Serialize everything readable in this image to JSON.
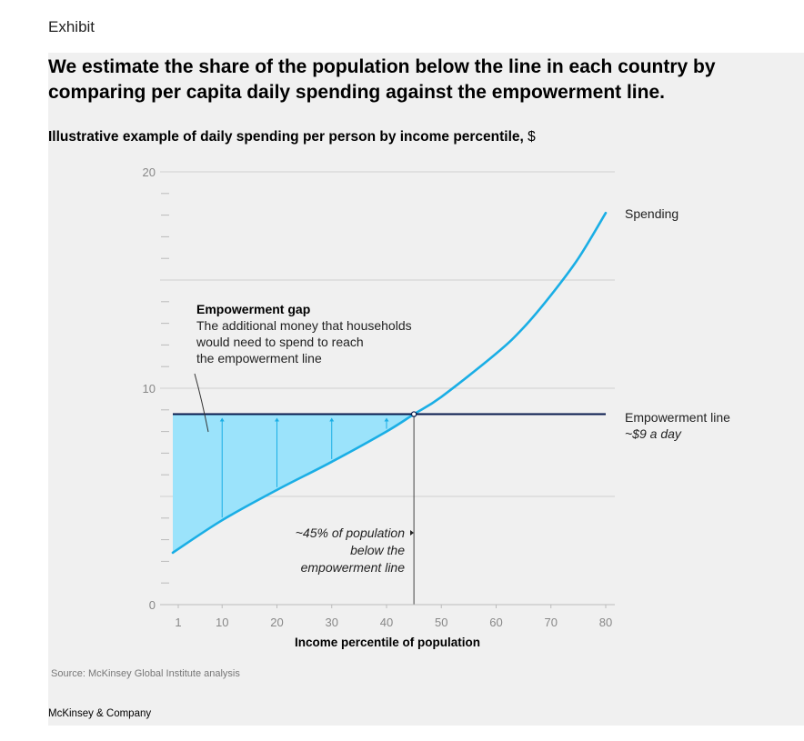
{
  "exhibit_label": "Exhibit",
  "headline": "We estimate the share of the population below the line in each country by comparing per capita daily spending against the empowerment line.",
  "subtitle": {
    "bold": "Illustrative example of daily spending per person by income percentile,",
    "unit": " $"
  },
  "source": "Source: McKinsey Global Institute analysis",
  "brand": "McKinsey & Company",
  "colors": {
    "spending": "#1aaee5",
    "gap_fill": "#9be3fb",
    "empowerment_line": "#06184b",
    "grid": "#cfcfcf"
  },
  "chart_data": {
    "type": "line",
    "title": "Illustrative example of daily spending per person by income percentile, $",
    "xlabel": "Income percentile of population",
    "ylabel": "",
    "xlim": [
      1,
      80
    ],
    "ylim": [
      0,
      20
    ],
    "x_ticks": [
      1,
      10,
      20,
      30,
      40,
      50,
      60,
      70,
      80
    ],
    "y_ticks": [
      0,
      10,
      20
    ],
    "gridlines_y": [
      0,
      5,
      10,
      15,
      20
    ],
    "minor_y_step": 1,
    "series": [
      {
        "name": "Spending",
        "x": [
          1,
          10,
          20,
          30,
          40,
          45,
          50,
          60,
          65,
          70,
          75,
          80
        ],
        "y": [
          2.4,
          3.9,
          5.3,
          6.6,
          8.0,
          8.8,
          9.6,
          11.6,
          12.8,
          14.3,
          16.0,
          18.1
        ]
      }
    ],
    "reference_line": {
      "name": "Empowerment line",
      "y": 8.8,
      "label": "Empowerment line",
      "sublabel": "~$9 a day"
    },
    "crossover_x": 45,
    "gap_arrows_x": [
      10,
      20,
      30,
      40
    ],
    "annotations": {
      "gap_title": "Empowerment gap",
      "gap_lines": [
        "The additional money that households",
        "would need to spend to reach",
        "the empowerment line"
      ],
      "below_lines": [
        "~45% of population",
        "below the",
        "empowerment line"
      ]
    }
  }
}
